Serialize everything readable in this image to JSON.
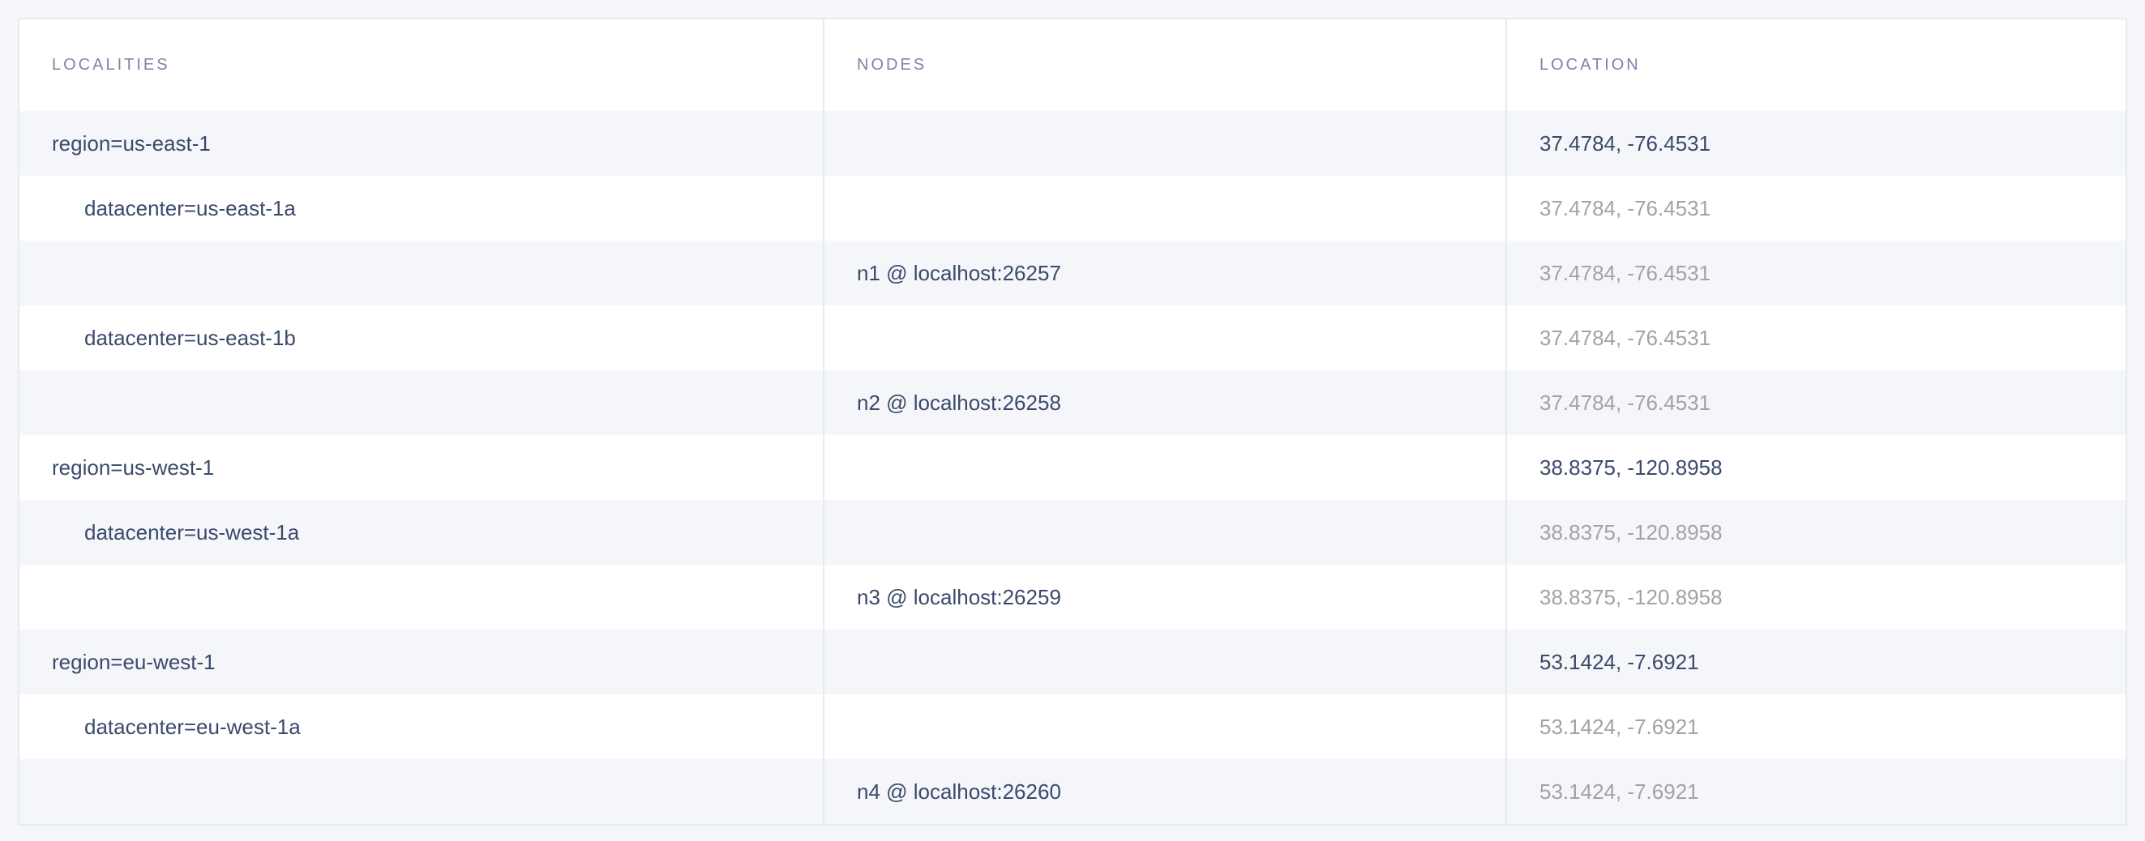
{
  "columns": {
    "localities": "LOCALITIES",
    "nodes": "NODES",
    "location": "LOCATION"
  },
  "rows": [
    {
      "locality": "region=us-east-1",
      "node": "",
      "location": "37.4784, -76.4531",
      "level": 0
    },
    {
      "locality": "datacenter=us-east-1a",
      "node": "",
      "location": "37.4784, -76.4531",
      "level": 1
    },
    {
      "locality": "",
      "node": "n1 @ localhost:26257",
      "location": "37.4784, -76.4531",
      "level": 2
    },
    {
      "locality": "datacenter=us-east-1b",
      "node": "",
      "location": "37.4784, -76.4531",
      "level": 1
    },
    {
      "locality": "",
      "node": "n2 @ localhost:26258",
      "location": "37.4784, -76.4531",
      "level": 2
    },
    {
      "locality": "region=us-west-1",
      "node": "",
      "location": "38.8375, -120.8958",
      "level": 0
    },
    {
      "locality": "datacenter=us-west-1a",
      "node": "",
      "location": "38.8375, -120.8958",
      "level": 1
    },
    {
      "locality": "",
      "node": "n3 @ localhost:26259",
      "location": "38.8375, -120.8958",
      "level": 2
    },
    {
      "locality": "region=eu-west-1",
      "node": "",
      "location": "53.1424, -7.6921",
      "level": 0
    },
    {
      "locality": "datacenter=eu-west-1a",
      "node": "",
      "location": "53.1424, -7.6921",
      "level": 1
    },
    {
      "locality": "",
      "node": "n4 @ localhost:26260",
      "location": "53.1424, -7.6921",
      "level": 2
    }
  ]
}
